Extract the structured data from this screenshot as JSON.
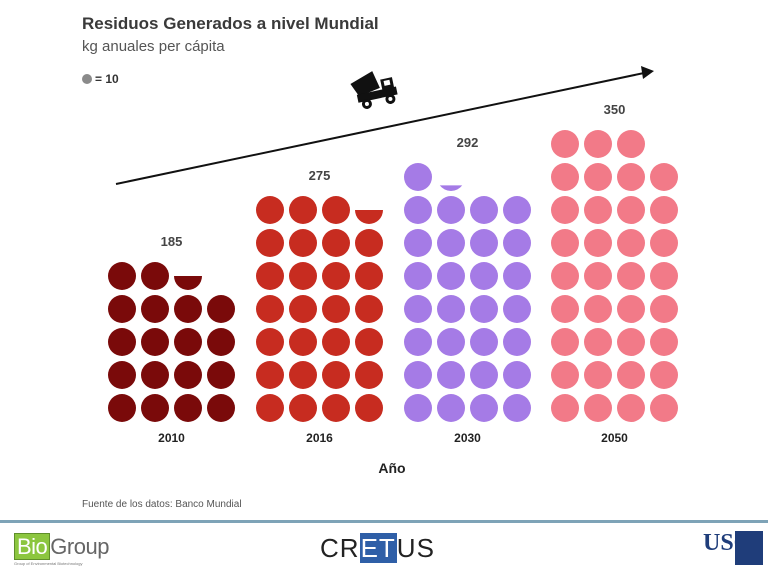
{
  "chart_data": {
    "type": "pictogram-bar",
    "title": "Residuos Generados a nivel Mundial",
    "subtitle": "kg anuales per cápita",
    "legend": {
      "symbol": "circle",
      "label": "= 10",
      "unit_value": 10
    },
    "xlabel": "Año",
    "categories": [
      "2010",
      "2016",
      "2030",
      "2050"
    ],
    "values": [
      185,
      275,
      292,
      350
    ],
    "colors": [
      "#7a0a0a",
      "#c72c20",
      "#a57be6",
      "#f27a88"
    ],
    "trend_arrow": true,
    "trend_icon": "dump-truck-icon"
  },
  "source": "Fuente de los datos: Banco Mundial",
  "footer": {
    "logo_left_a": "Bio",
    "logo_left_b": "Group",
    "logo_left_sub": "Group of Environmental Biotechnology",
    "logo_center_a": "CR",
    "logo_center_b": "ET",
    "logo_center_c": "US",
    "logo_right": "USC"
  }
}
